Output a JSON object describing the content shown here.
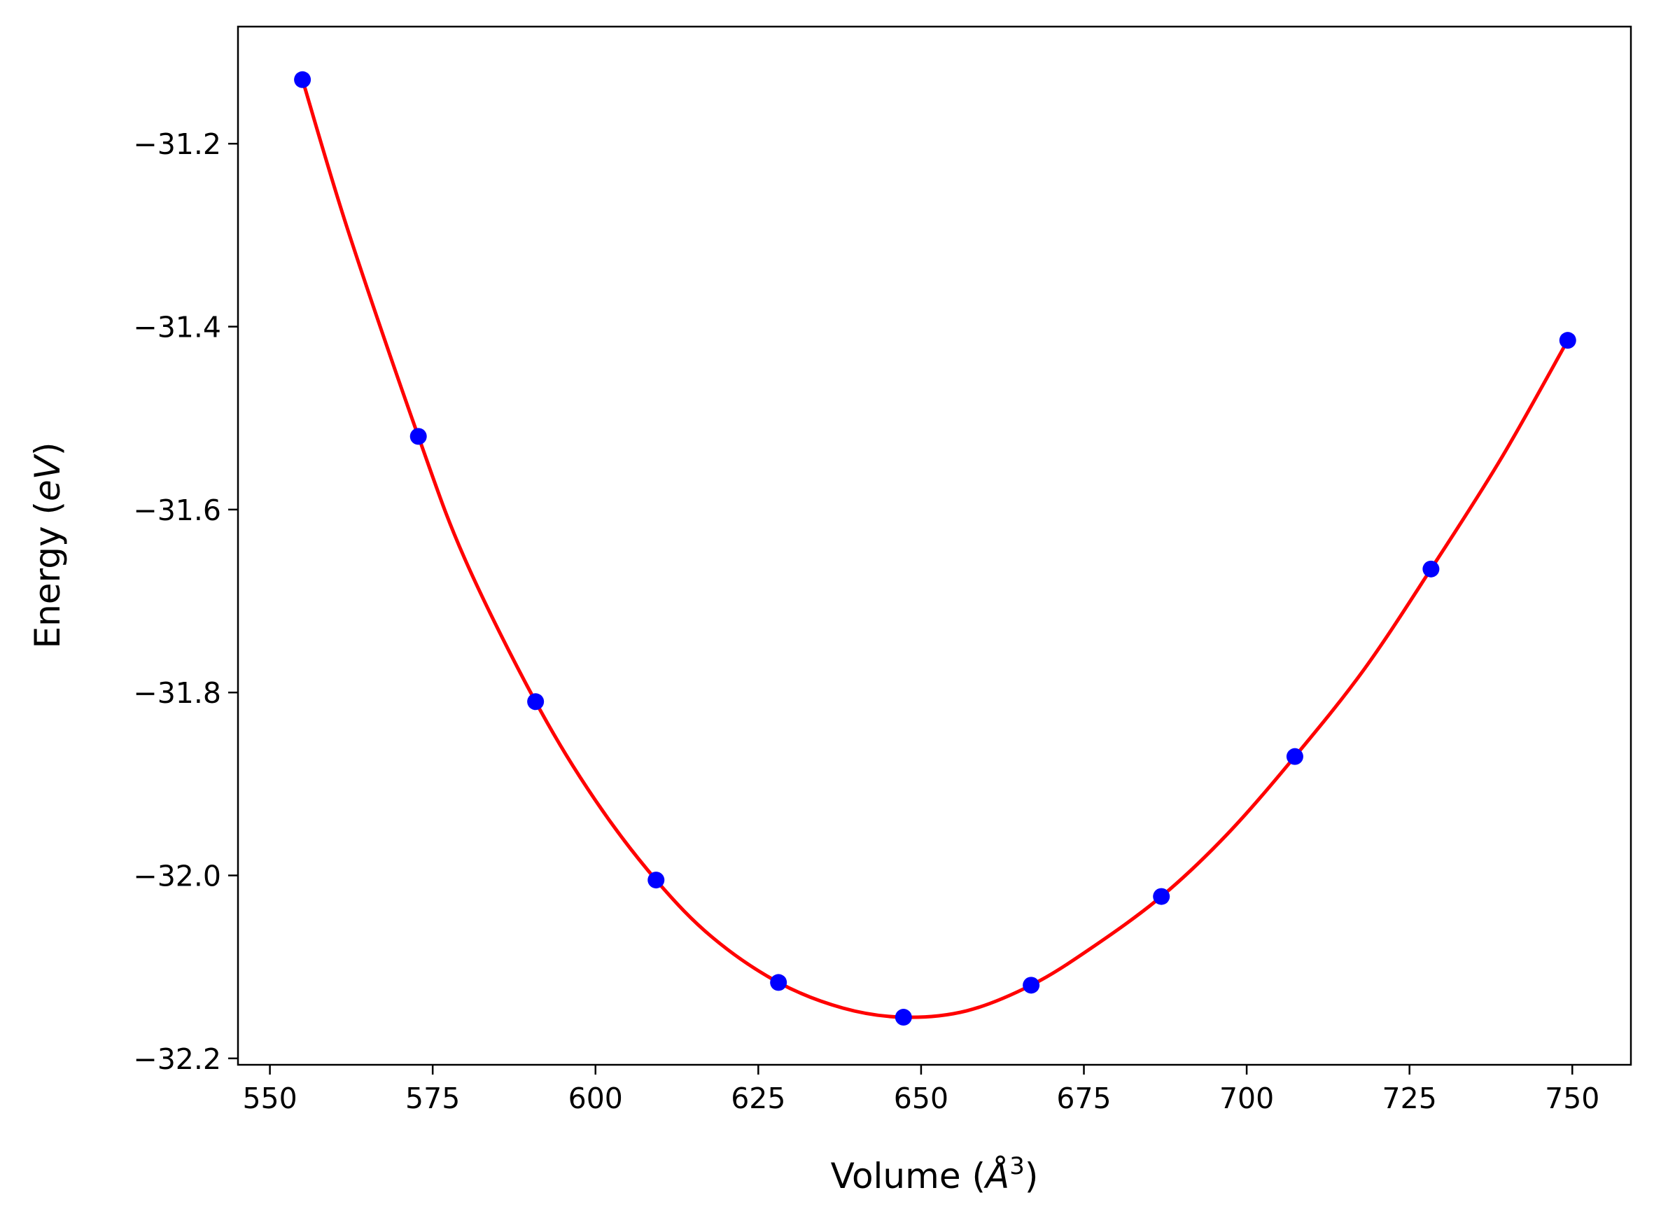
{
  "chart_data": {
    "type": "scatter",
    "xlabel": "Volume",
    "ylabel": "Energy",
    "xlabel_unit": "Å",
    "xlabel_unit_exp": "3",
    "ylabel_unit": "eV",
    "xlim": [
      545.1,
      759.0
    ],
    "ylim": [
      -32.207,
      -31.072
    ],
    "xticks": [
      550,
      575,
      600,
      625,
      650,
      675,
      700,
      725,
      750
    ],
    "xtick_labels": [
      "550",
      "575",
      "600",
      "625",
      "650",
      "675",
      "700",
      "725",
      "750"
    ],
    "yticks": [
      -31.2,
      -31.4,
      -31.6,
      -31.8,
      -32.0,
      -32.2
    ],
    "ytick_labels": [
      "−31.2",
      "−31.4",
      "−31.6",
      "−31.8",
      "−32.0",
      "−32.2"
    ],
    "grid": false,
    "series": [
      {
        "kind": "points",
        "color": "#0000ff",
        "x": [
          555.0,
          572.8,
          590.8,
          609.3,
          628.1,
          647.3,
          666.9,
          686.9,
          707.4,
          728.3,
          749.3
        ],
        "y": [
          -31.13,
          -31.52,
          -31.81,
          -32.005,
          -32.117,
          -32.155,
          -32.12,
          -32.023,
          -31.87,
          -31.665,
          -31.415
        ]
      },
      {
        "kind": "fit-line",
        "color": "#ff0000",
        "x": [
          555.0,
          562.0,
          572.8,
          580.0,
          590.8,
          600.0,
          609.3,
          618.0,
          628.1,
          638.0,
          647.3,
          657.0,
          666.9,
          676.0,
          686.9,
          697.0,
          707.4,
          718.0,
          728.3,
          739.0,
          749.3
        ],
        "y": [
          -31.13,
          -31.295,
          -31.52,
          -31.655,
          -31.81,
          -31.918,
          -32.005,
          -32.068,
          -32.117,
          -32.145,
          -32.155,
          -32.148,
          -32.12,
          -32.08,
          -32.023,
          -31.955,
          -31.87,
          -31.775,
          -31.665,
          -31.545,
          -31.415
        ]
      }
    ]
  }
}
